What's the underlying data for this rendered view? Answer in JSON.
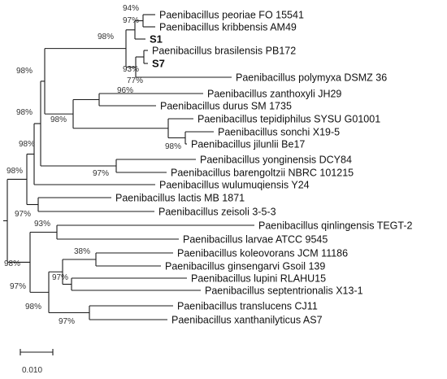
{
  "tree": {
    "leaves": [
      {
        "id": "peoriae",
        "label": "Paenibacillus peoriae FO 15541",
        "bold": false
      },
      {
        "id": "kribbensis",
        "label": "Paenibacillus kribbensis AM49",
        "bold": false
      },
      {
        "id": "s1",
        "label": "S1",
        "bold": true
      },
      {
        "id": "brasilensis",
        "label": "Paenibacillus brasilensis PB172",
        "bold": false
      },
      {
        "id": "s7",
        "label": "S7",
        "bold": true
      },
      {
        "id": "polymyxa",
        "label": "Paenibacillus polymyxa DSMZ 36",
        "bold": false
      },
      {
        "id": "zanthoxyli",
        "label": "Paenibacillus zanthoxyli JH29",
        "bold": false
      },
      {
        "id": "durus",
        "label": "Paenibacillus durus SM 1735",
        "bold": false
      },
      {
        "id": "tepidiphilus",
        "label": "Paenibacillus tepidiphilus SYSU G01001",
        "bold": false
      },
      {
        "id": "sonchi",
        "label": "Paenibacillus sonchi X19-5",
        "bold": false
      },
      {
        "id": "jilunlii",
        "label": "Paenibacillus jilunlii Be17",
        "bold": false
      },
      {
        "id": "yonginensis",
        "label": "Paenibacillus yonginensis DCY84",
        "bold": false
      },
      {
        "id": "barengoltzii",
        "label": "Paenibacillus barengoltzii NBRC 101215",
        "bold": false
      },
      {
        "id": "wulumuqiensis",
        "label": "Paenibacillus wulumuqiensis Y24",
        "bold": false
      },
      {
        "id": "lactis",
        "label": "Paenibacillus lactis MB 1871",
        "bold": false
      },
      {
        "id": "zeisoli",
        "label": "Paenibacillus zeisoli 3-5-3",
        "bold": false
      },
      {
        "id": "qinlingensis",
        "label": "Paenibacillus qinlingensis TEGT-2",
        "bold": false
      },
      {
        "id": "larvae",
        "label": "Paenibacillus larvae ATCC 9545",
        "bold": false
      },
      {
        "id": "koleovorans",
        "label": "Paenibacillus koleovorans JCM 11186",
        "bold": false
      },
      {
        "id": "ginsengarvi",
        "label": "Paenibacillus ginsengarvi Gsoil 139",
        "bold": false
      },
      {
        "id": "lupini",
        "label": "Paenibacillus lupini RLAHU15",
        "bold": false
      },
      {
        "id": "septentrionalis",
        "label": "Paenibacillus septentrionalis X13-1",
        "bold": false
      },
      {
        "id": "translucens",
        "label": "Paenibacillus translucens CJ11",
        "bold": false
      },
      {
        "id": "xanthanilyticus",
        "label": "Paenibacillus xanthanilyticus AS7",
        "bold": false
      }
    ],
    "bootstrap": [
      {
        "id": "bs-peoriae-kribbensis",
        "label": "94%"
      },
      {
        "id": "bs-with-s1",
        "label": "97%"
      },
      {
        "id": "bs-group-a",
        "label": "98%"
      },
      {
        "id": "bs-brasilensis-s7",
        "label": "93%"
      },
      {
        "id": "bs-with-polymyxa",
        "label": "77%"
      },
      {
        "id": "bs-polymyxa-group",
        "label": "98%"
      },
      {
        "id": "bs-zanthoxyli-durus",
        "label": "96%"
      },
      {
        "id": "bs-tepidiphilus-group",
        "label": "98%"
      },
      {
        "id": "bs-sonchi-jilunlii",
        "label": "98%"
      },
      {
        "id": "bs-upper-large",
        "label": "98%"
      },
      {
        "id": "bs-yonginensis-barengoltzii",
        "label": "97%"
      },
      {
        "id": "bs-with-wulumuqiensis",
        "label": "98%"
      },
      {
        "id": "bs-upper-root",
        "label": "98%"
      },
      {
        "id": "bs-lactis-zeisoli",
        "label": "97%"
      },
      {
        "id": "bs-qinlingensis-larvae",
        "label": "93%"
      },
      {
        "id": "bs-koleovorans-ginsengarvi",
        "label": "38%"
      },
      {
        "id": "bs-lower-root",
        "label": "98%"
      },
      {
        "id": "bs-lupini-septentrionalis",
        "label": "97%"
      },
      {
        "id": "bs-lower-inner",
        "label": "97%"
      },
      {
        "id": "bs-lower-bottom",
        "label": "98%"
      },
      {
        "id": "bs-translucens-xanthanilyticus",
        "label": "97%"
      }
    ],
    "scale_bar": {
      "value": "0.010"
    }
  }
}
